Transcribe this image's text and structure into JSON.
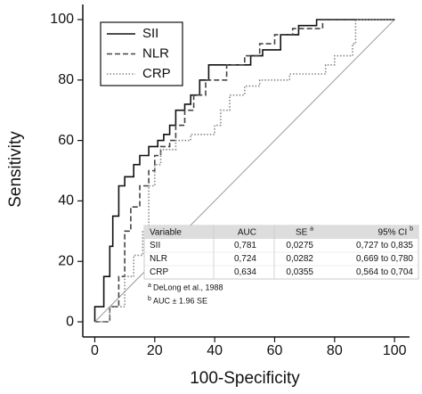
{
  "chart_data": {
    "type": "line",
    "x_label": "100-Specificity",
    "y_label": "Sensitivity",
    "xlim": [
      -4,
      105
    ],
    "ylim": [
      -5,
      105
    ],
    "xticks": [
      0,
      20,
      40,
      60,
      80,
      100
    ],
    "yticks": [
      0,
      20,
      40,
      60,
      80,
      100
    ],
    "legend": "upper left",
    "series": [
      {
        "name": "SII",
        "color": "#111111",
        "dash": "solid",
        "x": [
          0,
          0,
          3,
          3,
          5,
          5,
          6,
          6,
          8,
          8,
          10,
          10,
          13,
          13,
          15,
          15,
          18,
          18,
          21,
          21,
          23,
          23,
          25,
          25,
          27,
          27,
          30,
          30,
          32,
          32,
          35,
          35,
          38,
          38,
          52,
          52,
          56,
          56,
          62,
          62,
          68,
          68,
          74,
          74,
          100
        ],
        "values": [
          0,
          5,
          5,
          15,
          15,
          25,
          25,
          35,
          35,
          45,
          45,
          48,
          48,
          52,
          52,
          55,
          55,
          58,
          58,
          60,
          60,
          62,
          62,
          65,
          65,
          70,
          70,
          72,
          72,
          75,
          75,
          80,
          80,
          85,
          85,
          88,
          88,
          90,
          90,
          95,
          95,
          98,
          98,
          100,
          100
        ]
      },
      {
        "name": "NLR",
        "color": "#444444",
        "dash": "dashed",
        "x": [
          0,
          5,
          5,
          8,
          8,
          10,
          10,
          12,
          12,
          15,
          15,
          18,
          18,
          20,
          20,
          22,
          22,
          25,
          25,
          27,
          27,
          30,
          30,
          33,
          33,
          37,
          37,
          44,
          44,
          50,
          50,
          55,
          55,
          60,
          60,
          66,
          66,
          76,
          76,
          100
        ],
        "values": [
          0,
          0,
          5,
          5,
          15,
          15,
          30,
          30,
          38,
          38,
          45,
          45,
          50,
          50,
          55,
          55,
          58,
          58,
          60,
          60,
          65,
          65,
          70,
          70,
          75,
          75,
          80,
          80,
          85,
          85,
          88,
          88,
          92,
          92,
          95,
          95,
          97,
          97,
          100,
          100
        ]
      },
      {
        "name": "CRP",
        "color": "#888888",
        "dash": "dotted",
        "x": [
          0,
          5,
          5,
          10,
          10,
          13,
          13,
          16,
          16,
          18,
          18,
          20,
          20,
          22,
          22,
          27,
          27,
          32,
          32,
          40,
          40,
          42,
          42,
          45,
          45,
          50,
          50,
          55,
          55,
          65,
          65,
          77,
          77,
          80,
          80,
          86,
          86,
          87,
          87,
          100
        ],
        "values": [
          0,
          0,
          5,
          5,
          15,
          15,
          22,
          22,
          30,
          30,
          45,
          45,
          52,
          52,
          57,
          57,
          60,
          60,
          62,
          62,
          65,
          65,
          70,
          70,
          75,
          75,
          78,
          78,
          80,
          80,
          82,
          82,
          85,
          85,
          88,
          88,
          92,
          92,
          100,
          100
        ]
      }
    ],
    "table": {
      "header": [
        "Variable",
        "AUC",
        "SE",
        "95% CI"
      ],
      "header_marks": [
        "a",
        "b"
      ],
      "rows": [
        [
          "SII",
          "0,781",
          "0,0275",
          "0,727 to 0,835"
        ],
        [
          "NLR",
          "0,724",
          "0,0282",
          "0,669 to 0,780"
        ],
        [
          "CRP",
          "0,634",
          "0,0355",
          "0,564 to 0,704"
        ]
      ],
      "footnotes": [
        {
          "mark": "a",
          "text": "DeLong et al., 1988"
        },
        {
          "mark": "b",
          "text": "AUC ± 1.96 SE"
        }
      ]
    }
  }
}
